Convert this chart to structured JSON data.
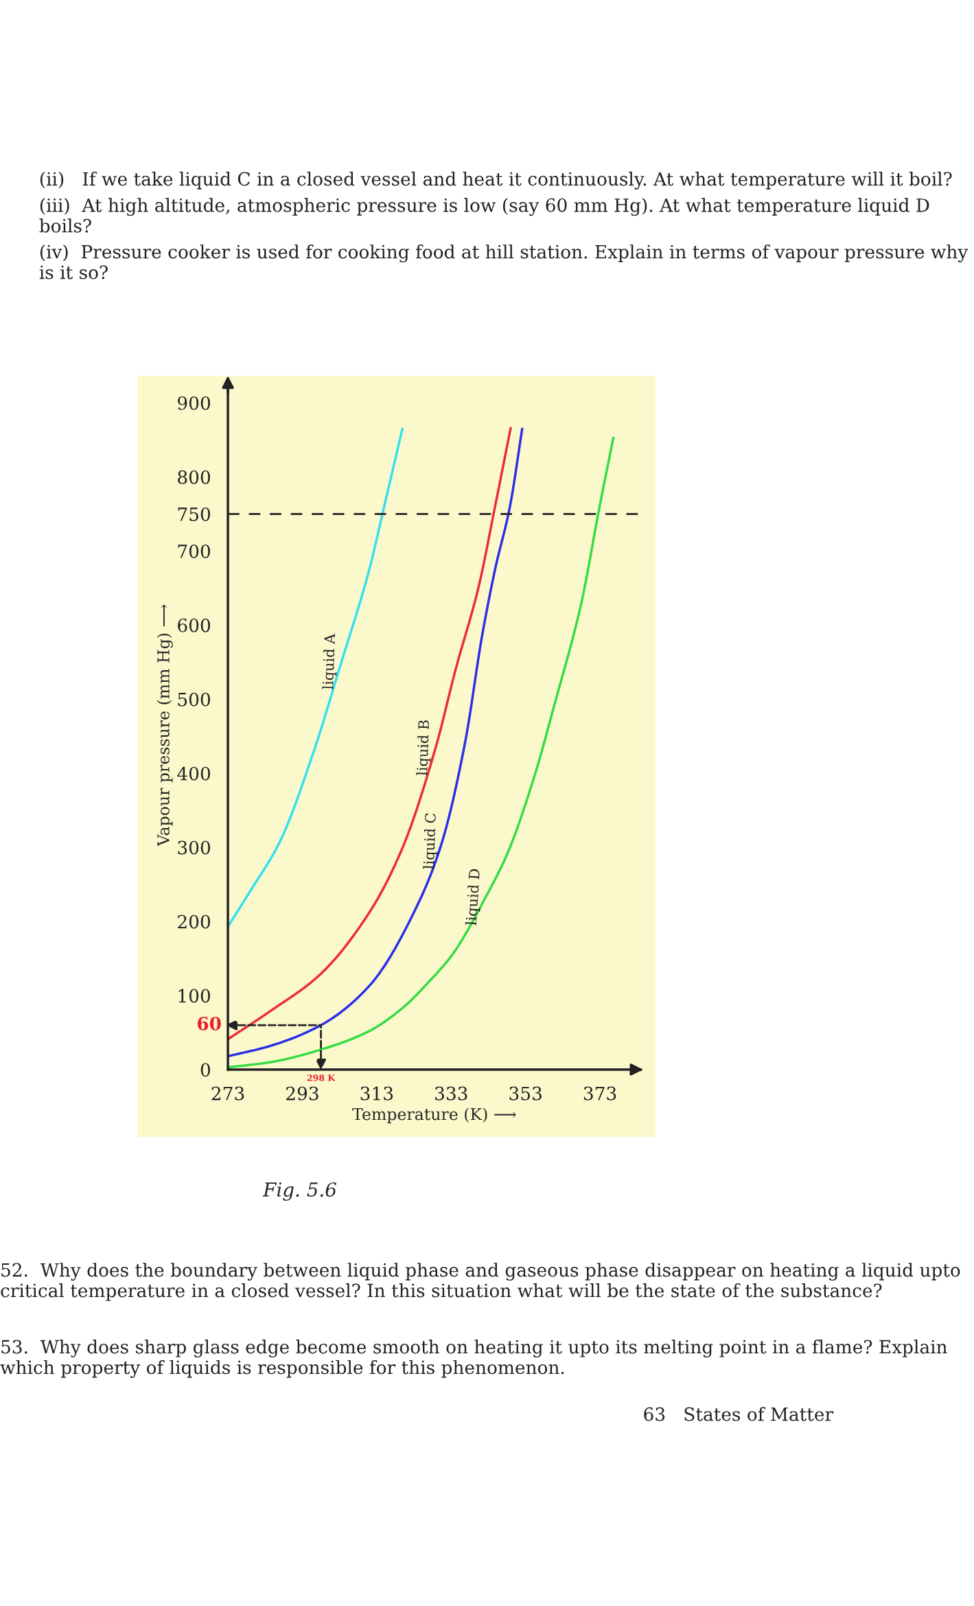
{
  "chart_data": {
    "type": "line",
    "title": "Fig. 5.6",
    "xlabel": "Temperature (K) ⟶",
    "ylabel": "Vapour pressure (mm Hg) ⟶",
    "xlim": [
      273,
      384
    ],
    "ylim": [
      0,
      930
    ],
    "xticks": [
      273,
      293,
      313,
      333,
      353,
      373
    ],
    "yticks": [
      0,
      100,
      200,
      300,
      400,
      500,
      600,
      700,
      750,
      800,
      900
    ],
    "grid": false,
    "legend": false,
    "marker": "none",
    "line_style": "solid",
    "series": [
      {
        "name": "liquid A",
        "color": "#33e0ee",
        "x": [
          273,
          279.0,
          287.0,
          295.9,
          303.5,
          311.0,
          315.0,
          319.9
        ],
        "values": [
          193,
          241,
          308,
          427,
          550,
          675,
          760,
          865
        ]
      },
      {
        "name": "liquid B",
        "color": "#ee2a3a",
        "x": [
          273,
          284.4,
          297.7,
          311.0,
          319.9,
          328.8,
          334.2,
          340.4,
          344.8,
          349.0
        ],
        "values": [
          41,
          79,
          128,
          212,
          299,
          434,
          540,
          652,
          760,
          866
        ]
      },
      {
        "name": "liquid C",
        "color": "#2a2ee8",
        "x": [
          273,
          284.4,
          298.0,
          311.0,
          324.4,
          330.6,
          336.8,
          341.3,
          344.8,
          348.8,
          352.1
        ],
        "values": [
          18,
          32,
          60,
          113,
          227,
          308,
          443,
          585,
          675,
          760,
          865
        ]
      },
      {
        "name": "liquid D",
        "color": "#33dd44",
        "x": [
          273,
          284.4,
          298.0,
          311.0,
          319.9,
          327.1,
          333.3,
          342.2,
          348.4,
          355.5,
          360.9,
          368.0,
          372.9,
          376.6
        ],
        "values": [
          3,
          10,
          27,
          52,
          83,
          119,
          155,
          232,
          295,
          398,
          495,
          630,
          760,
          853
        ]
      }
    ],
    "ref_lines": [
      {
        "axis": "y",
        "value": 750,
        "color": "#222222",
        "line_style": "dashed"
      }
    ],
    "annotations": [
      {
        "text": "60",
        "x": 298,
        "y": 60
      },
      {
        "text": "298 K",
        "x": 298,
        "y": 60
      },
      "(ii)   If we take liquid C in a closed vessel and heat it continuously. At what temperature will it boil?",
      "(iii)  At high altitude, atmospheric pressure is low (say 60 mm Hg). At what temperature liquid D boils?",
      "(iv)  Pressure cooker is used for cooking food at hill station. Explain in terms of vapour pressure why is it so?",
      "52.  Why does the boundary between liquid phase and gaseous phase disappear on heating a liquid upto critical temperature in a closed vessel? In this situation what will be the state of the substance?",
      "53.  Why does sharp glass edge become smooth on heating it upto its melting point in a flame? Explain which property of liquids is responsible for this phenomenon.",
      "63   States of Matter"
    ]
  }
}
